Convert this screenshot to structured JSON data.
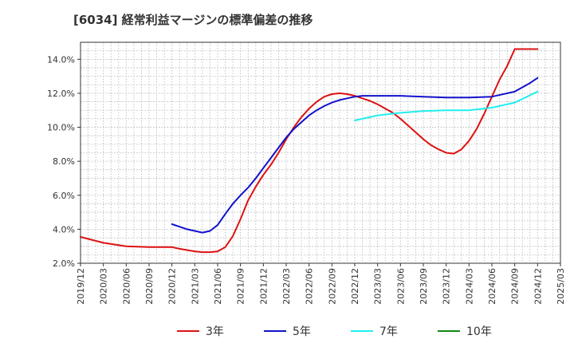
{
  "chart_data": {
    "type": "line",
    "title": "[6034]  経常利益マージンの標準偏差の推移",
    "xlabel": "",
    "ylabel": "",
    "x_ticks": [
      "2019/12",
      "2020/03",
      "2020/06",
      "2020/09",
      "2020/12",
      "2021/03",
      "2021/06",
      "2021/09",
      "2021/12",
      "2022/03",
      "2022/06",
      "2022/09",
      "2022/12",
      "2023/03",
      "2023/06",
      "2023/09",
      "2023/12",
      "2024/03",
      "2024/06",
      "2024/09",
      "2024/12",
      "2025/03"
    ],
    "y_ticks": [
      "2.0%",
      "4.0%",
      "6.0%",
      "8.0%",
      "10.0%",
      "12.0%",
      "14.0%"
    ],
    "ylim": [
      2.0,
      15.0
    ],
    "grid": true,
    "legend_position": "bottom",
    "series": [
      {
        "name": "3年",
        "color": "#dd1111",
        "x": [
          "2019/12",
          "2020/03",
          "2020/06",
          "2020/09",
          "2020/12",
          "2021/01",
          "2021/03",
          "2021/04",
          "2021/05",
          "2021/06",
          "2021/07",
          "2021/08",
          "2021/09",
          "2021/10",
          "2021/11",
          "2021/12",
          "2022/01",
          "2022/02",
          "2022/03",
          "2022/04",
          "2022/05",
          "2022/06",
          "2022/07",
          "2022/08",
          "2022/09",
          "2022/10",
          "2022/11",
          "2022/12",
          "2023/01",
          "2023/02",
          "2023/03",
          "2023/04",
          "2023/05",
          "2023/06",
          "2023/07",
          "2023/08",
          "2023/09",
          "2023/10",
          "2023/11",
          "2023/12",
          "2024/01",
          "2024/02",
          "2024/03",
          "2024/04",
          "2024/05",
          "2024/06",
          "2024/07",
          "2024/08",
          "2024/09",
          "2024/10",
          "2024/11",
          "2024/12"
        ],
        "values": [
          3.55,
          3.2,
          3.0,
          2.95,
          2.95,
          2.85,
          2.7,
          2.65,
          2.65,
          2.7,
          2.95,
          3.6,
          4.6,
          5.7,
          6.5,
          7.2,
          7.8,
          8.5,
          9.3,
          10.0,
          10.6,
          11.1,
          11.5,
          11.8,
          11.95,
          12.0,
          11.95,
          11.85,
          11.7,
          11.55,
          11.35,
          11.1,
          10.85,
          10.5,
          10.1,
          9.7,
          9.3,
          8.95,
          8.7,
          8.5,
          8.45,
          8.7,
          9.2,
          9.9,
          10.8,
          11.8,
          12.8,
          13.6,
          14.6,
          14.6,
          14.6,
          14.6
        ]
      },
      {
        "name": "5年",
        "color": "#1111cc",
        "x": [
          "2020/12",
          "2021/01",
          "2021/02",
          "2021/03",
          "2021/04",
          "2021/05",
          "2021/06",
          "2021/07",
          "2021/08",
          "2021/09",
          "2021/10",
          "2021/11",
          "2021/12",
          "2022/01",
          "2022/02",
          "2022/03",
          "2022/04",
          "2022/05",
          "2022/06",
          "2022/07",
          "2022/08",
          "2022/09",
          "2022/10",
          "2022/11",
          "2022/12",
          "2023/01",
          "2023/02",
          "2023/03",
          "2023/04",
          "2023/05",
          "2023/06",
          "2023/09",
          "2023/12",
          "2024/03",
          "2024/06",
          "2024/09",
          "2024/10",
          "2024/11",
          "2024/12"
        ],
        "values": [
          4.3,
          4.15,
          4.0,
          3.9,
          3.8,
          3.9,
          4.25,
          4.9,
          5.5,
          6.0,
          6.45,
          7.0,
          7.6,
          8.2,
          8.8,
          9.4,
          9.9,
          10.3,
          10.7,
          11.0,
          11.25,
          11.45,
          11.6,
          11.7,
          11.8,
          11.85,
          11.85,
          11.85,
          11.85,
          11.85,
          11.85,
          11.8,
          11.75,
          11.75,
          11.8,
          12.1,
          12.35,
          12.6,
          12.9
        ]
      },
      {
        "name": "7年",
        "color": "#22eeee",
        "x": [
          "2022/12",
          "2023/03",
          "2023/06",
          "2023/09",
          "2023/12",
          "2024/03",
          "2024/06",
          "2024/09",
          "2024/12"
        ],
        "values": [
          10.4,
          10.7,
          10.85,
          10.95,
          11.0,
          11.0,
          11.15,
          11.45,
          12.1
        ]
      },
      {
        "name": "10年",
        "color": "#118811",
        "x": [],
        "values": []
      }
    ]
  }
}
